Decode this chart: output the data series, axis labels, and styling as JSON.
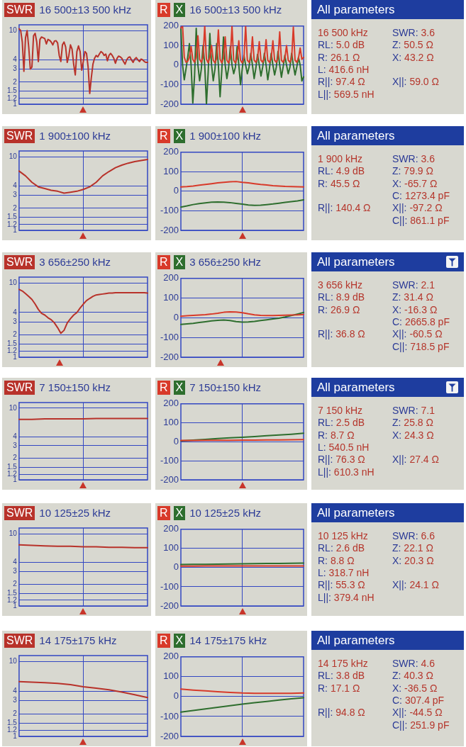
{
  "chart_data": [
    {
      "type": "line",
      "title": "16 500±13 500 kHz",
      "legend": "top left",
      "grid": true,
      "tick_labels": "y",
      "log": true,
      "ylim": [
        1,
        12
      ],
      "yticks": [
        1,
        1.2,
        1.5,
        2,
        3,
        4,
        10
      ],
      "categories": [
        null,
        null,
        null,
        null,
        null,
        null,
        null,
        null,
        null,
        null,
        null,
        null,
        null,
        null,
        null,
        null,
        null,
        null,
        null,
        null,
        null,
        null,
        null,
        null,
        null,
        null,
        null,
        null,
        null,
        null,
        null,
        null,
        null,
        null,
        null,
        null,
        null,
        null,
        null,
        null,
        null,
        null,
        null,
        null,
        null,
        null,
        null,
        null,
        null,
        null,
        null,
        null,
        null,
        null,
        null,
        null,
        null,
        null,
        null,
        null,
        null,
        null,
        null,
        null,
        null,
        null,
        null,
        null,
        null,
        null,
        null,
        null,
        null,
        null,
        null,
        null,
        null,
        null,
        null,
        null,
        null
      ],
      "series": [
        {
          "name": "SWR",
          "color": "#b8322a",
          "values": [
            10.6,
            10,
            7,
            2.8,
            8,
            10,
            6,
            3.0,
            3.2,
            8.5,
            9.2,
            7,
            3.8,
            7.6,
            8.2,
            8.0,
            7.8,
            6.6,
            7.6,
            7.4,
            7.0,
            6.4,
            7.2,
            7.3,
            6.8,
            4.6,
            3.8,
            6.4,
            7.0,
            6.0,
            3.7,
            4.6,
            6.4,
            5.6,
            3.5,
            2.5,
            5.2,
            6.2,
            5.2,
            2.9,
            3.8,
            5.2,
            4.9,
            3.2,
            1.4,
            2.3,
            3.5,
            4.2,
            4.6,
            4.4,
            4.8,
            5.2,
            5.0,
            4.6,
            4.8,
            3.9,
            4.6,
            4.9,
            4.6,
            4.2,
            3.6,
            4.2,
            4.5,
            4.4,
            4.2,
            3.8,
            3.5,
            4.0,
            4.3,
            4.4,
            4.0,
            3.7,
            4.1,
            4.3,
            4.0,
            3.8,
            4.1,
            4.0,
            3.8,
            3.7,
            3.7
          ]
        }
      ]
    },
    {
      "type": "line",
      "title": "16 500±13 500 kHz",
      "legend": "top left",
      "grid": true,
      "tick_labels": "y",
      "ylim": [
        -200,
        200
      ],
      "yticks": [
        -200,
        -100,
        0,
        100,
        200
      ],
      "categories": [
        null,
        null,
        null,
        null,
        null,
        null,
        null,
        null,
        null,
        null,
        null,
        null,
        null,
        null,
        null,
        null,
        null,
        null,
        null,
        null,
        null,
        null,
        null,
        null,
        null,
        null,
        null,
        null,
        null,
        null,
        null,
        null,
        null,
        null,
        null,
        null,
        null,
        null,
        null,
        null,
        null,
        null,
        null,
        null,
        null,
        null,
        null,
        null,
        null,
        null,
        null,
        null,
        null,
        null,
        null,
        null,
        null,
        null,
        null,
        null,
        null,
        null,
        null,
        null,
        null,
        null,
        null,
        null,
        null,
        null,
        null,
        null,
        null
      ],
      "series": [
        {
          "name": "R",
          "color": "#d83a2a",
          "values": [
            190,
            200,
            40,
            15,
            20,
            40,
            95,
            30,
            15,
            40,
            150,
            30,
            15,
            40,
            200,
            30,
            12,
            40,
            100,
            25,
            12,
            35,
            180,
            30,
            12,
            35,
            145,
            25,
            12,
            40,
            200,
            25,
            12,
            35,
            125,
            25,
            12,
            35,
            200,
            25,
            15,
            35,
            145,
            25,
            15,
            35,
            120,
            25,
            15,
            35,
            130,
            25,
            15,
            35,
            125,
            25,
            15,
            35,
            170,
            25,
            15,
            35,
            100,
            25,
            15,
            35,
            195,
            25,
            15,
            35,
            88,
            30,
            40
          ]
        },
        {
          "name": "X",
          "color": "#2e6e2e",
          "values": [
            190,
            0,
            -75,
            -20,
            40,
            110,
            0,
            -194,
            -60,
            188,
            0,
            -80,
            -20,
            100,
            0,
            -200,
            -40,
            162,
            0,
            -80,
            -20,
            110,
            0,
            -162,
            -30,
            144,
            0,
            -69,
            -15,
            94,
            0,
            -44,
            -10,
            94,
            0,
            -100,
            -20,
            50,
            0,
            -44,
            -10,
            60,
            0,
            -69,
            -15,
            55,
            0,
            -56,
            -10,
            60,
            0,
            -75,
            -15,
            60,
            0,
            -50,
            -10,
            70,
            0,
            -62,
            -10,
            50,
            0,
            -44,
            -10,
            60,
            0,
            -50,
            -10,
            40,
            0,
            -81,
            -60
          ]
        }
      ]
    },
    {
      "type": "other",
      "title": "All parameters",
      "annotations": [
        "16 500 kHz",
        "SWR: 3.6",
        "RL: 5.0 dB",
        "Z: 50.5 Ω",
        "R: 26.1 Ω",
        "X: 43.2 Ω",
        "L: 416.6 nH",
        "R||: 97.4 Ω",
        "X||: 59.0 Ω",
        "L||: 569.5 nH"
      ]
    },
    {
      "type": "line",
      "title": "1 900±100 kHz",
      "legend": "top left",
      "grid": true,
      "tick_labels": "y",
      "log": true,
      "ylim": [
        1,
        12
      ],
      "yticks": [
        1,
        1.2,
        1.5,
        2,
        3,
        4,
        10
      ],
      "categories": [
        null,
        null,
        null,
        null,
        null,
        null,
        null,
        null,
        null,
        null,
        null,
        null,
        null,
        null,
        null,
        null,
        null,
        null,
        null,
        null,
        null
      ],
      "series": [
        {
          "name": "SWR",
          "color": "#b8322a",
          "values": [
            6.4,
            5.5,
            4.5,
            3.9,
            3.7,
            3.5,
            3.4,
            3.2,
            3.3,
            3.4,
            3.6,
            3.9,
            4.5,
            5.5,
            6.3,
            7.1,
            7.7,
            8.2,
            8.6,
            8.9,
            9.2
          ]
        }
      ]
    },
    {
      "type": "line",
      "title": "1 900±100 kHz",
      "legend": "top left",
      "grid": true,
      "tick_labels": "y",
      "ylim": [
        -200,
        200
      ],
      "yticks": [
        -200,
        -100,
        0,
        100,
        200
      ],
      "categories": [
        null,
        null,
        null,
        null,
        null,
        null,
        null,
        null,
        null,
        null,
        null,
        null,
        null,
        null,
        null,
        null,
        null,
        null,
        null,
        null,
        null
      ],
      "series": [
        {
          "name": "R",
          "color": "#d83a2a",
          "values": [
            22,
            24,
            27,
            31,
            35,
            39,
            43,
            46,
            49,
            50,
            46,
            43,
            39,
            35,
            32,
            29,
            27,
            25,
            24,
            23,
            22
          ]
        },
        {
          "name": "X",
          "color": "#2e6e2e",
          "values": [
            -81,
            -75,
            -68,
            -63,
            -59,
            -56,
            -55,
            -56,
            -58,
            -62,
            -66,
            -70,
            -72,
            -71,
            -68,
            -65,
            -61,
            -57,
            -53,
            -49,
            -44
          ]
        }
      ]
    },
    {
      "type": "other",
      "title": "All parameters",
      "annotations": [
        "1 900 kHz",
        "SWR: 3.6",
        "RL: 4.9 dB",
        "Z: 79.9 Ω",
        "R: 45.5 Ω",
        "X: -65.7 Ω",
        "C: 1273.4 pF",
        "R||: 140.4 Ω",
        "X||: -97.2 Ω",
        "C||: 861.1 pF"
      ]
    },
    {
      "type": "line",
      "title": "3 656±250 kHz",
      "legend": "top left",
      "grid": true,
      "tick_labels": "y",
      "log": true,
      "ylim": [
        1,
        12
      ],
      "yticks": [
        1,
        1.2,
        1.5,
        2,
        3,
        4,
        10
      ],
      "categories": [
        null,
        null,
        null,
        null,
        null,
        null,
        null,
        null,
        null,
        null,
        null,
        null,
        null,
        null,
        null,
        null,
        null,
        null,
        null,
        null,
        null,
        null,
        null,
        null,
        null,
        null,
        null,
        null,
        null,
        null,
        null,
        null,
        null,
        null,
        null,
        null,
        null,
        null,
        null,
        null,
        null
      ],
      "series": [
        {
          "name": "SWR",
          "color": "#b8322a",
          "values": [
            8.2,
            7.8,
            7.2,
            6.6,
            6.0,
            5.2,
            4.4,
            3.9,
            3.7,
            3.4,
            3.2,
            2.9,
            2.5,
            2.1,
            2.3,
            2.9,
            3.3,
            3.7,
            4.0,
            4.6,
            5.2,
            5.8,
            6.2,
            6.6,
            6.9,
            7.0,
            7.1,
            7.2,
            7.3,
            7.3,
            7.4,
            7.4,
            7.4,
            7.4,
            7.4,
            7.4,
            7.4,
            7.4,
            7.4,
            7.4,
            7.3
          ]
        }
      ]
    },
    {
      "type": "line",
      "title": "3 656±250 kHz",
      "legend": "top left",
      "grid": true,
      "tick_labels": "y",
      "ylim": [
        -200,
        200
      ],
      "yticks": [
        -200,
        -100,
        0,
        100,
        200
      ],
      "categories": [
        null,
        null,
        null,
        null,
        null,
        null,
        null,
        null,
        null,
        null,
        null,
        null,
        null,
        null,
        null,
        null,
        null,
        null,
        null,
        null,
        null
      ],
      "series": [
        {
          "name": "R",
          "color": "#d83a2a",
          "values": [
            8,
            10,
            12,
            14,
            16,
            19,
            23,
            28,
            30,
            29,
            26,
            20,
            15,
            12,
            11,
            11,
            12,
            13,
            14,
            15,
            17
          ]
        },
        {
          "name": "X",
          "color": "#2e6e2e",
          "values": [
            -34,
            -31,
            -28,
            -24,
            -20,
            -16,
            -13,
            -11,
            -14,
            -19,
            -22,
            -21,
            -18,
            -14,
            -10,
            -6,
            -2,
            4,
            11,
            19,
            27
          ]
        }
      ]
    },
    {
      "type": "other",
      "title": "All parameters",
      "annotations": [
        "3 656 kHz",
        "SWR: 2.1",
        "RL: 8.9 dB",
        "Z: 31.4 Ω",
        "R: 26.9 Ω",
        "X: -16.3 Ω",
        "C: 2665.8 pF",
        "R||: 36.8 Ω",
        "X||: -60.5 Ω",
        "C||: 718.5 pF"
      ]
    },
    {
      "type": "line",
      "title": "7 150±150 kHz",
      "legend": "top left",
      "grid": true,
      "tick_labels": "y",
      "log": true,
      "ylim": [
        1,
        12
      ],
      "yticks": [
        1,
        1.2,
        1.5,
        2,
        3,
        4,
        10
      ],
      "categories": [
        null,
        null,
        null,
        null,
        null,
        null,
        null,
        null,
        null,
        null,
        null
      ],
      "series": [
        {
          "name": "SWR",
          "color": "#b8322a",
          "values": [
            7.0,
            7.0,
            7.1,
            7.1,
            7.1,
            7.1,
            7.2,
            7.2,
            7.2,
            7.2,
            7.2
          ]
        }
      ]
    },
    {
      "type": "line",
      "title": "7 150±150 kHz",
      "legend": "top left",
      "grid": true,
      "tick_labels": "y",
      "ylim": [
        -200,
        200
      ],
      "yticks": [
        -200,
        -100,
        0,
        100,
        200
      ],
      "categories": [
        null,
        null,
        null,
        null,
        null,
        null,
        null,
        null,
        null,
        null,
        null
      ],
      "series": [
        {
          "name": "R",
          "color": "#d83a2a",
          "values": [
            7,
            7,
            8,
            8,
            8,
            9,
            9,
            10,
            10,
            11,
            12
          ]
        },
        {
          "name": "X",
          "color": "#2e6e2e",
          "values": [
            5,
            9,
            13,
            17,
            21,
            24,
            28,
            32,
            36,
            40,
            45
          ]
        }
      ]
    },
    {
      "type": "other",
      "title": "All parameters",
      "annotations": [
        "7 150 kHz",
        "SWR: 7.1",
        "RL: 2.5 dB",
        "Z: 25.8 Ω",
        "R: 8.7 Ω",
        "X: 24.3 Ω",
        "L: 540.5 nH",
        "R||: 76.3 Ω",
        "X||: 27.4 Ω",
        "L||: 610.3 nH"
      ]
    },
    {
      "type": "line",
      "title": "10 125±25 kHz",
      "legend": "top left",
      "grid": true,
      "tick_labels": "y",
      "log": true,
      "ylim": [
        1,
        12
      ],
      "yticks": [
        1,
        1.2,
        1.5,
        2,
        3,
        4,
        10
      ],
      "categories": [
        null,
        null,
        null,
        null,
        null,
        null,
        null,
        null,
        null,
        null,
        null
      ],
      "series": [
        {
          "name": "SWR",
          "color": "#b8322a",
          "values": [
            7.0,
            6.9,
            6.8,
            6.7,
            6.7,
            6.6,
            6.6,
            6.5,
            6.5,
            6.4,
            6.4
          ]
        }
      ]
    },
    {
      "type": "line",
      "title": "10 125±25 kHz",
      "legend": "top left",
      "grid": true,
      "tick_labels": "y",
      "ylim": [
        -200,
        200
      ],
      "yticks": [
        -200,
        -100,
        0,
        100,
        200
      ],
      "categories": [
        null,
        null,
        null,
        null,
        null,
        null,
        null,
        null,
        null,
        null,
        null
      ],
      "series": [
        {
          "name": "R",
          "color": "#d83a2a",
          "values": [
            8,
            8,
            9,
            9,
            9,
            9,
            9,
            9,
            9,
            9,
            9
          ]
        },
        {
          "name": "X",
          "color": "#2e6e2e",
          "values": [
            16,
            17,
            17,
            18,
            19,
            20,
            21,
            22,
            22,
            23,
            24
          ]
        }
      ]
    },
    {
      "type": "other",
      "title": "All parameters",
      "annotations": [
        "10 125 kHz",
        "SWR: 6.6",
        "RL: 2.6 dB",
        "Z: 22.1 Ω",
        "R: 8.8 Ω",
        "X: 20.3 Ω",
        "L: 318.7 nH",
        "R||: 55.3 Ω",
        "X||: 24.1 Ω",
        "L||: 379.4 nH"
      ]
    },
    {
      "type": "line",
      "title": "14 175±175 kHz",
      "legend": "top left",
      "grid": true,
      "tick_labels": "y",
      "log": true,
      "ylim": [
        1,
        12
      ],
      "yticks": [
        1,
        1.2,
        1.5,
        2,
        3,
        4,
        10
      ],
      "categories": [
        null,
        null,
        null,
        null,
        null,
        null,
        null,
        null,
        null,
        null,
        null
      ],
      "series": [
        {
          "name": "SWR",
          "color": "#b8322a",
          "values": [
            5.4,
            5.3,
            5.2,
            5.1,
            4.9,
            4.6,
            4.4,
            4.2,
            3.9,
            3.6,
            3.3
          ]
        }
      ]
    },
    {
      "type": "line",
      "title": "14 175±175 kHz",
      "legend": "top left",
      "grid": true,
      "tick_labels": "y",
      "ylim": [
        -200,
        200
      ],
      "yticks": [
        -200,
        -100,
        0,
        100,
        200
      ],
      "categories": [
        null,
        null,
        null,
        null,
        null,
        null,
        null,
        null,
        null,
        null,
        null
      ],
      "series": [
        {
          "name": "R",
          "color": "#d83a2a",
          "values": [
            38,
            33,
            29,
            25,
            21,
            18,
            17,
            17,
            17,
            17,
            18
          ]
        },
        {
          "name": "X",
          "color": "#2e6e2e",
          "values": [
            -78,
            -70,
            -62,
            -54,
            -46,
            -38,
            -31,
            -24,
            -17,
            -11,
            -6
          ]
        }
      ]
    },
    {
      "type": "other",
      "title": "All parameters",
      "annotations": [
        "14 175 kHz",
        "SWR: 4.6",
        "RL: 3.8 dB",
        "Z: 40.3 Ω",
        "R: 17.1 Ω",
        "X: -36.5 Ω",
        "C: 307.4 pF",
        "R||: 94.8 Ω",
        "X||: -44.5 Ω",
        "C||: 251.9 pF"
      ]
    }
  ]
}
